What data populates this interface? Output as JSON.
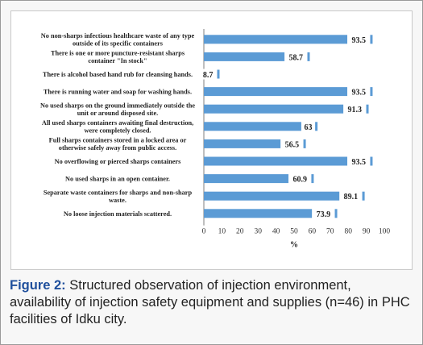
{
  "chart_data": {
    "type": "bar",
    "orientation": "horizontal",
    "categories": [
      "No non-sharps infectious healthcare waste of any type outside of its specific containers",
      "There is one or more puncture-resistant sharps container \"In stock\"",
      "There is alcohol based hand rub for cleansing hands.",
      "There is running water and soap for washing hands.",
      "No used sharps on the ground immediately outside the unit or around disposed site.",
      "All used sharps containers awaiting final destruction, were completely closed.",
      "Full sharps containers stored in a locked area or otherwise safely away from public access.",
      "No overflowing or pierced sharps containers",
      "No used sharps in an open container.",
      "Separate waste containers for sharps and non-sharp waste.",
      "No loose injection materials scattered."
    ],
    "values": [
      93.5,
      58.7,
      8.7,
      93.5,
      91.3,
      63,
      56.5,
      93.5,
      60.9,
      89.1,
      73.9
    ],
    "value_labels": [
      "93.5",
      "58.7",
      "8.7",
      "93.5",
      "91.3",
      "63",
      "56.5",
      "93.5",
      "60.9",
      "89.1",
      "73.9"
    ],
    "xlabel": "%",
    "xlim": [
      0,
      100
    ],
    "xticks": [
      0,
      10,
      20,
      30,
      40,
      50,
      60,
      70,
      80,
      90,
      100
    ],
    "bar_color": "#5b9bd5",
    "grid": false
  },
  "caption": {
    "label": "Figure 2:",
    "text": " Structured observation of injection environment, availability of injection safety equipment and supplies (n=46) in PHC facilities of Idku city."
  }
}
